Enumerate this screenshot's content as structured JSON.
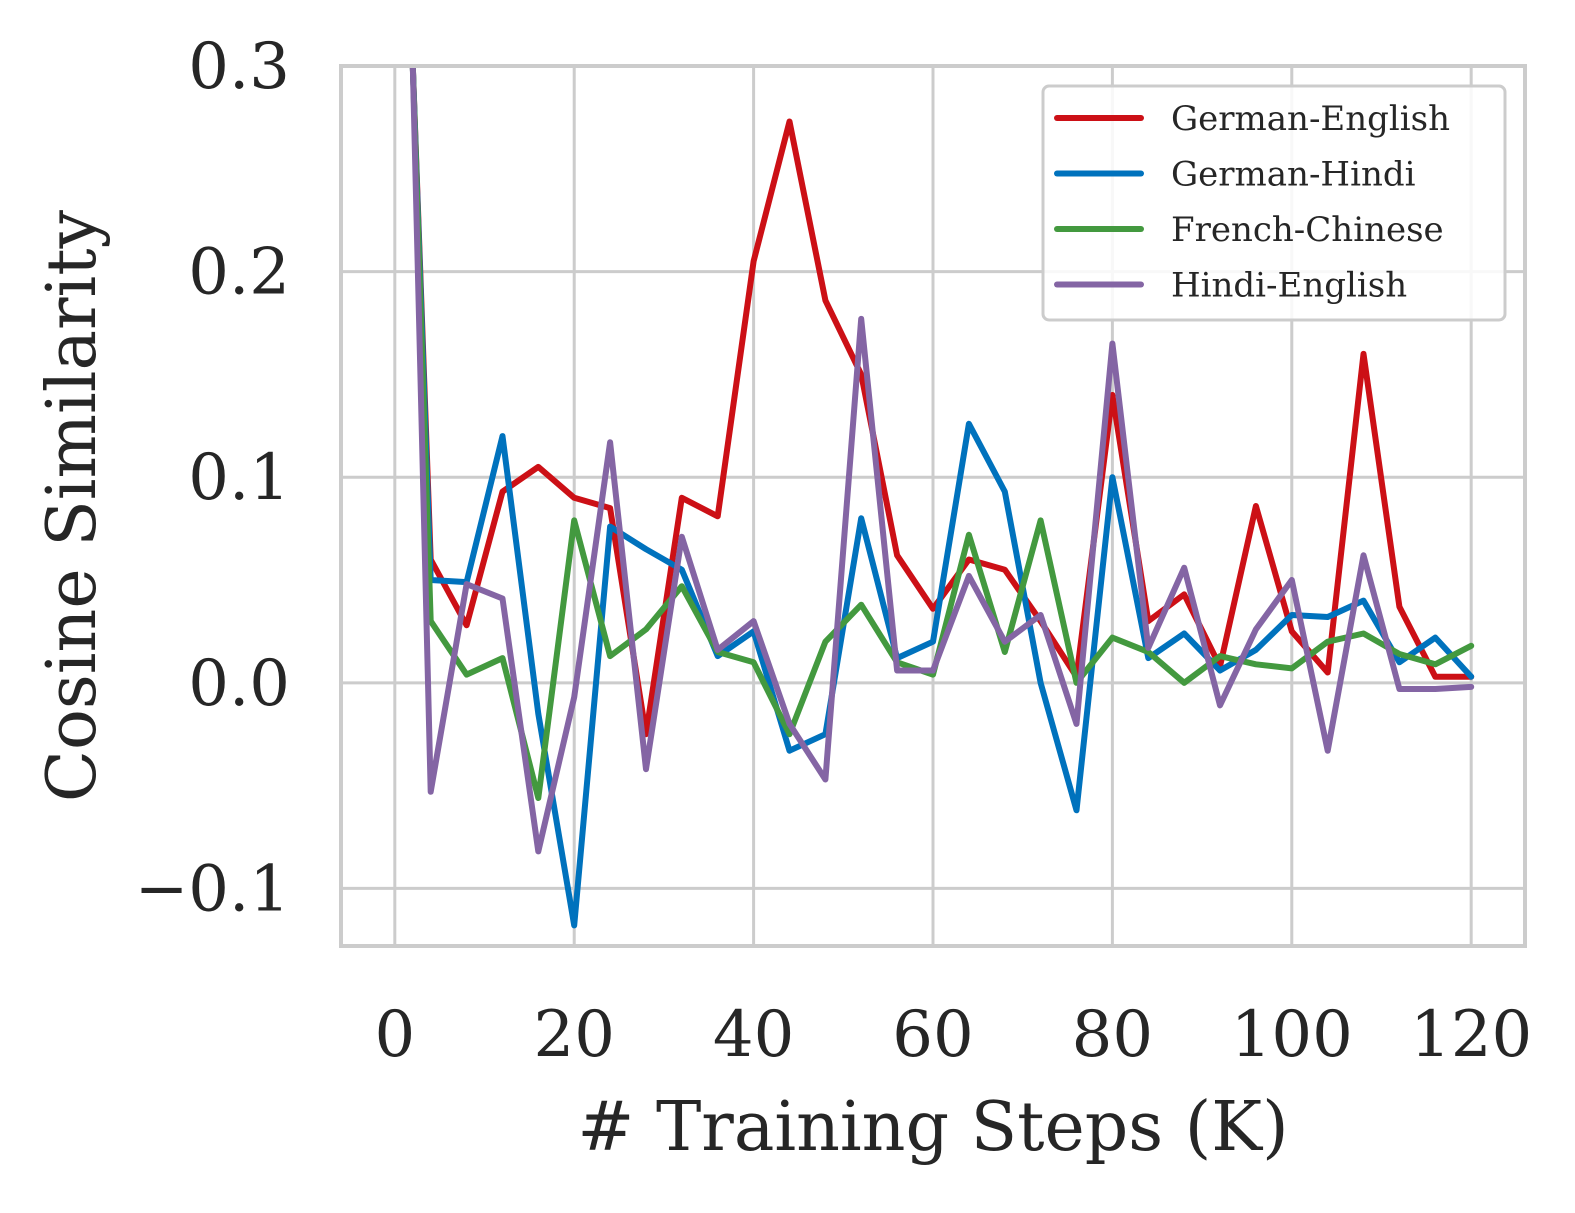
{
  "chart_data": {
    "type": "line",
    "title": "",
    "xlabel": "# Training Steps (K)",
    "ylabel": "Cosine Similarity",
    "xlim": [
      -6,
      126
    ],
    "ylim": [
      -0.128,
      0.3
    ],
    "xticks": [
      0,
      20,
      40,
      60,
      80,
      100,
      120
    ],
    "yticks": [
      -0.1,
      0.0,
      0.1,
      0.2,
      0.3
    ],
    "xtick_labels": [
      "0",
      "20",
      "40",
      "60",
      "80",
      "100",
      "120"
    ],
    "ytick_labels": [
      "−0.1",
      "0.0",
      "0.1",
      "0.2",
      "0.3"
    ],
    "grid": true,
    "legend_position": "top-right",
    "x": [
      2,
      4,
      8,
      12,
      16,
      20,
      24,
      28,
      32,
      36,
      40,
      44,
      48,
      52,
      56,
      60,
      64,
      68,
      72,
      76,
      80,
      84,
      88,
      92,
      96,
      100,
      104,
      108,
      112,
      116,
      120
    ],
    "series": [
      {
        "name": "German-English",
        "color": "#cc1016",
        "values": [
          0.3,
          0.06,
          0.028,
          0.093,
          0.105,
          0.09,
          0.085,
          -0.025,
          0.09,
          0.081,
          0.205,
          0.273,
          0.186,
          0.15,
          0.062,
          0.036,
          0.06,
          0.055,
          0.03,
          0.003,
          0.14,
          0.03,
          0.043,
          0.008,
          0.086,
          0.025,
          0.005,
          0.16,
          0.037,
          0.003,
          0.003
        ]
      },
      {
        "name": "German-Hindi",
        "color": "#0072bd",
        "values": [
          0.3,
          0.05,
          0.049,
          0.12,
          -0.015,
          -0.118,
          0.076,
          0.065,
          0.055,
          0.013,
          0.025,
          -0.033,
          -0.025,
          0.08,
          0.012,
          0.02,
          0.126,
          0.093,
          0.0,
          -0.062,
          0.1,
          0.012,
          0.024,
          0.006,
          0.016,
          0.033,
          0.032,
          0.04,
          0.01,
          0.022,
          0.003
        ]
      },
      {
        "name": "French-Chinese",
        "color": "#43993f",
        "values": [
          0.3,
          0.03,
          0.004,
          0.012,
          -0.056,
          0.079,
          0.013,
          0.026,
          0.047,
          0.015,
          0.01,
          -0.025,
          0.02,
          0.038,
          0.01,
          0.004,
          0.072,
          0.015,
          0.079,
          0.0,
          0.022,
          0.015,
          0.0,
          0.013,
          0.009,
          0.007,
          0.02,
          0.024,
          0.014,
          0.009,
          0.018
        ]
      },
      {
        "name": "Hindi-English",
        "color": "#8465a4",
        "values": [
          0.3,
          -0.053,
          0.048,
          0.041,
          -0.082,
          -0.007,
          0.117,
          -0.042,
          0.071,
          0.016,
          0.03,
          -0.02,
          -0.047,
          0.177,
          0.006,
          0.006,
          0.052,
          0.02,
          0.033,
          -0.02,
          0.165,
          0.017,
          0.056,
          -0.011,
          0.026,
          0.05,
          -0.033,
          0.062,
          -0.003,
          -0.003,
          -0.002
        ]
      }
    ]
  }
}
